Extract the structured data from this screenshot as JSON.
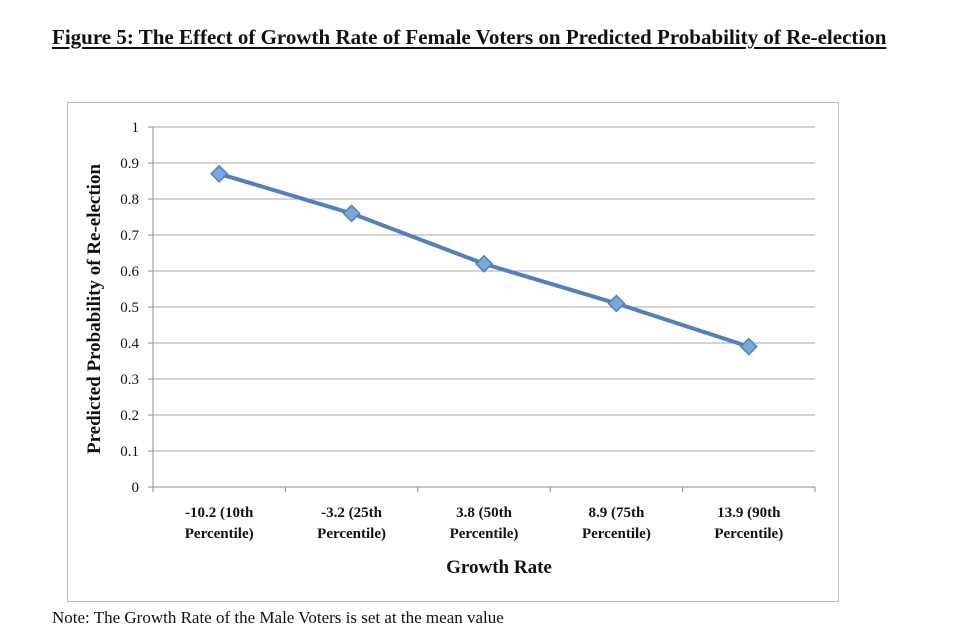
{
  "page": {
    "title": "Figure 5: The Effect of Growth Rate of Female Voters on Predicted Probability of Re-election",
    "note": "Note: The Growth Rate of the Male Voters is set at the mean value"
  },
  "chart_data": {
    "type": "line",
    "categories": [
      [
        "-10.2 (10th",
        "Percentile)"
      ],
      [
        "-3.2 (25th",
        "Percentile)"
      ],
      [
        "3.8 (50th",
        "Percentile)"
      ],
      [
        "8.9 (75th",
        "Percentile)"
      ],
      [
        "13.9 (90th",
        "Percentile)"
      ]
    ],
    "series": [
      {
        "values": [
          0.87,
          0.76,
          0.62,
          0.51,
          0.39
        ],
        "color": "#4f81bd",
        "marker": "diamond"
      }
    ],
    "xlabel": "Growth Rate",
    "ylabel": "Predicted Probability of Re-election",
    "ylim": [
      0,
      1
    ],
    "yticks": [
      0,
      0.1,
      0.2,
      0.3,
      0.4,
      0.5,
      0.6,
      0.7,
      0.8,
      0.9,
      1
    ],
    "ytick_labels": [
      "0",
      "0.1",
      "0.2",
      "0.3",
      "0.4",
      "0.5",
      "0.6",
      "0.7",
      "0.8",
      "0.9",
      "1"
    ],
    "grid": true,
    "legend": "none"
  }
}
